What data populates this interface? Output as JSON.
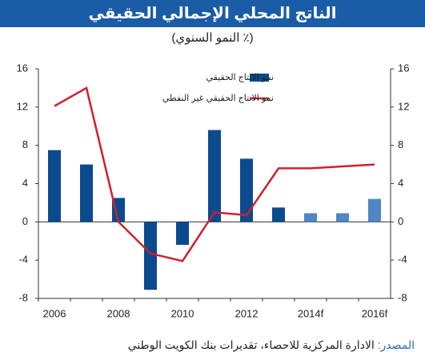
{
  "chart_data": {
    "type": "bar_line",
    "title": "الناتج المحلي الإجمالي الحقيقي",
    "subtitle": "(٪ النمو السنوي)",
    "source": {
      "label": "المصدر:",
      "text": "الادارة المركزية للاحصاء، تقديرات بنك الكويت الوطني"
    },
    "categories": [
      "2006",
      null,
      "2008",
      null,
      "2010",
      null,
      "2012",
      null,
      "2014f",
      null,
      "2016f"
    ],
    "series": [
      {
        "name": "نمو الانتاج الحقيقي",
        "type": "bar",
        "color": "#0b4a8f",
        "colors": [
          "#0b4a8f",
          "#0b4a8f",
          "#0b4a8f",
          "#0b4a8f",
          "#0b4a8f",
          "#0b4a8f",
          "#0b4a8f",
          "#0b4a8f",
          "#4f86c6",
          "#4f86c6",
          "#4f86c6"
        ],
        "values": [
          7.5,
          6.0,
          2.5,
          -7.1,
          -2.4,
          9.6,
          6.6,
          1.5,
          0.9,
          0.9,
          2.4
        ]
      },
      {
        "name": "نمو الانتاج الحقيقي غير النفطي",
        "type": "line",
        "color": "#d0202e",
        "axis": "y2",
        "values": [
          12.1,
          14.0,
          0.0,
          -3.3,
          -4.1,
          1.0,
          0.7,
          5.6,
          5.6,
          5.8,
          6.0
        ]
      }
    ],
    "ylim": [
      -8,
      16
    ],
    "yticks": [
      -8,
      -4,
      0,
      4,
      8,
      12,
      16
    ],
    "y2lim": [
      -8,
      16
    ],
    "y2ticks": [
      -8,
      -4,
      0,
      4,
      8,
      12,
      16
    ],
    "grid": false,
    "legend": "upper right"
  }
}
